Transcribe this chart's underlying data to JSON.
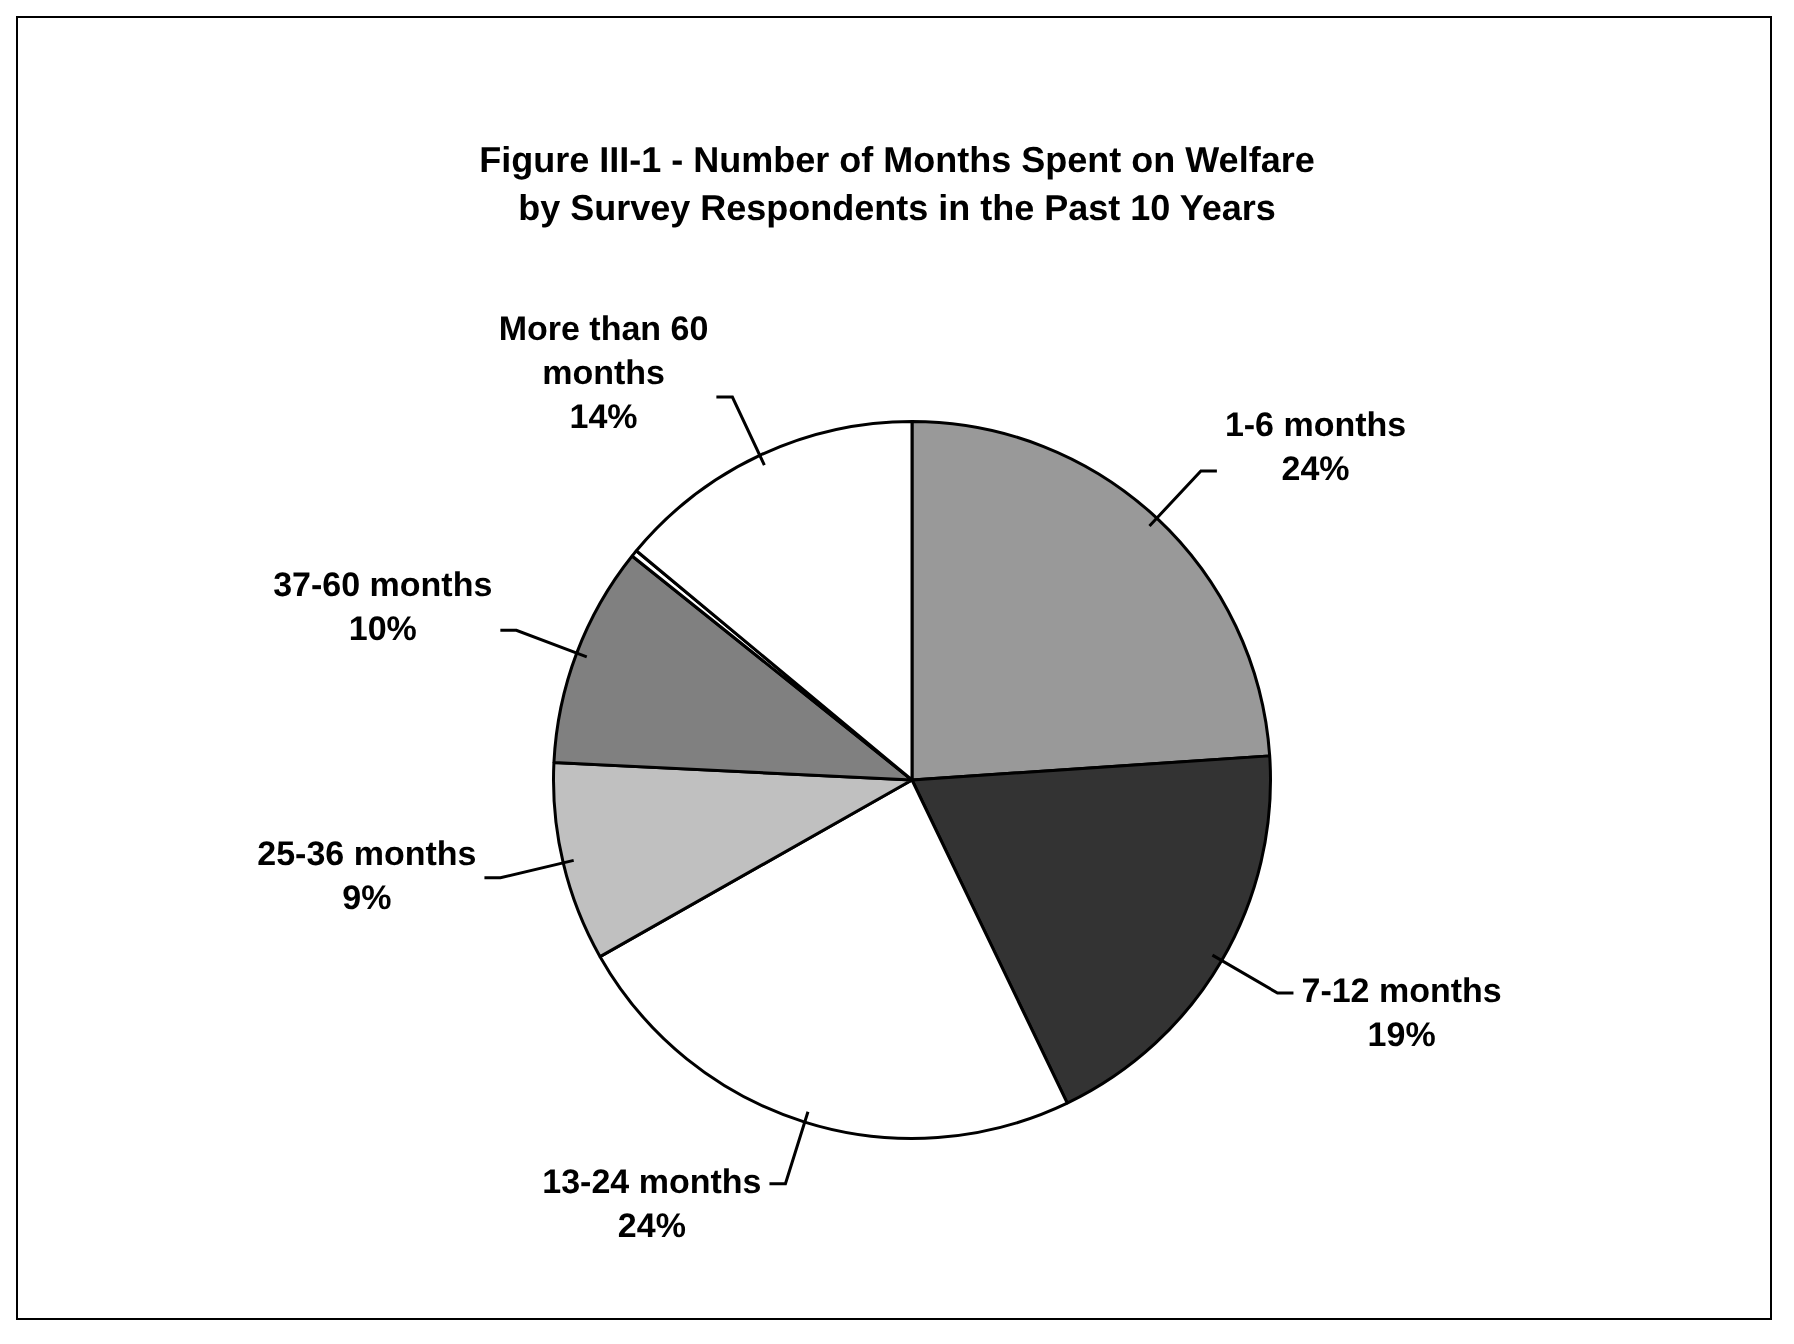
{
  "chart_data": {
    "type": "pie",
    "title": "Figure III-1 - Number of Months Spent on Welfare by Survey Respondents in the Past 10 Years",
    "categories": [
      "1-6 months",
      "7-12 months",
      "13-24 months",
      "25-36 months",
      "37-60 months",
      null,
      "More than 60 months"
    ],
    "values": [
      24,
      19,
      24,
      9,
      10,
      0.3,
      14
    ],
    "value_labels": [
      "24%",
      "19%",
      "24%",
      "9%",
      "10%",
      null,
      "14%"
    ],
    "colors": [
      "#999999",
      "#333333",
      "#ffffff",
      "#c0c0c0",
      "#808080",
      "#ffffff",
      "#ffffff"
    ],
    "legend": false
  }
}
